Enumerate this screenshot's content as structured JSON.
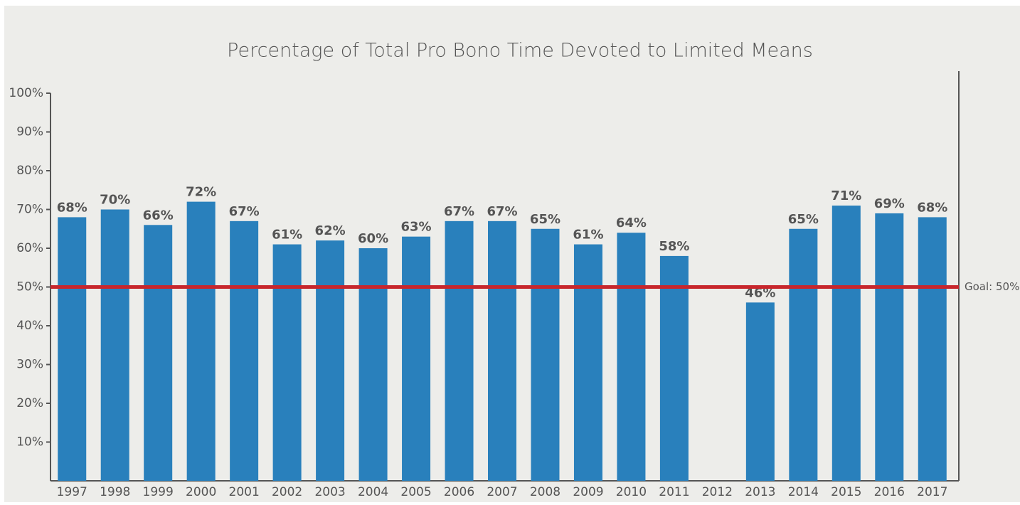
{
  "chart_data": {
    "type": "bar",
    "title": "Percentage of Total Pro Bono Time Devoted to Limited Means",
    "categories": [
      "1997",
      "1998",
      "1999",
      "2000",
      "2001",
      "2002",
      "2003",
      "2004",
      "2005",
      "2006",
      "2007",
      "2008",
      "2009",
      "2010",
      "2011",
      "2012",
      "2013",
      "2014",
      "2015",
      "2016",
      "2017"
    ],
    "values": [
      68,
      70,
      66,
      72,
      67,
      61,
      62,
      60,
      63,
      67,
      67,
      65,
      61,
      64,
      58,
      null,
      46,
      65,
      71,
      69,
      68
    ],
    "value_labels": [
      "68%",
      "70%",
      "66%",
      "72%",
      "67%",
      "61%",
      "62%",
      "60%",
      "63%",
      "67%",
      "67%",
      "65%",
      "61%",
      "64%",
      "58%",
      null,
      "46%",
      "65%",
      "71%",
      "69%",
      "68%"
    ],
    "color": "#2980bc",
    "ylim": [
      0,
      100
    ],
    "yticks": [
      {
        "value": 10,
        "label": "10%"
      },
      {
        "value": 20,
        "label": "20%"
      },
      {
        "value": 30,
        "label": "30%"
      },
      {
        "value": 40,
        "label": "40%"
      },
      {
        "value": 50,
        "label": "50%"
      },
      {
        "value": 60,
        "label": "60%"
      },
      {
        "value": 70,
        "label": "70%"
      },
      {
        "value": 80,
        "label": "80%"
      },
      {
        "value": 90,
        "label": "90%"
      },
      {
        "value": 100,
        "label": "100%"
      }
    ],
    "goal": {
      "value": 50,
      "label": "Goal: 50%",
      "color": "#c8262c"
    },
    "grid": false
  }
}
